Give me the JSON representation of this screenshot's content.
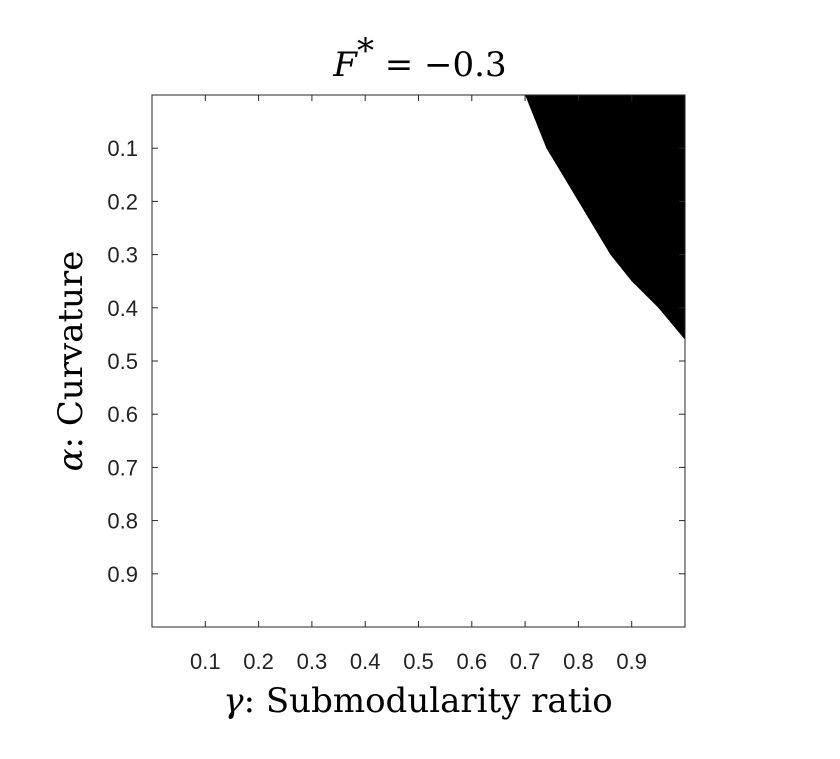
{
  "chart_data": {
    "type": "heatmap",
    "title": {
      "symbol": "F",
      "sup": "*",
      "rest": " = −0.3"
    },
    "xlabel": {
      "symbol": "γ",
      "rest": ": Submodularity ratio"
    },
    "ylabel": {
      "symbol": "α",
      "rest": ": Curvature"
    },
    "xlim": [
      0,
      1
    ],
    "ylim": [
      0,
      1
    ],
    "y_reversed": true,
    "xticks": [
      0.1,
      0.2,
      0.3,
      0.4,
      0.5,
      0.6,
      0.7,
      0.8,
      0.9
    ],
    "yticks": [
      0.1,
      0.2,
      0.3,
      0.4,
      0.5,
      0.6,
      0.7,
      0.8,
      0.9
    ],
    "xtick_labels": [
      "0.1",
      "0.2",
      "0.3",
      "0.4",
      "0.5",
      "0.6",
      "0.7",
      "0.8",
      "0.9"
    ],
    "ytick_labels": [
      "0.1",
      "0.2",
      "0.3",
      "0.4",
      "0.5",
      "0.6",
      "0.7",
      "0.8",
      "0.9"
    ],
    "colors": {
      "region": "#000000",
      "background": "#ffffff"
    },
    "region_boundary": [
      {
        "gamma": 0.7,
        "alpha": 0.0
      },
      {
        "gamma": 0.72,
        "alpha": 0.05
      },
      {
        "gamma": 0.74,
        "alpha": 0.1
      },
      {
        "gamma": 0.77,
        "alpha": 0.15
      },
      {
        "gamma": 0.8,
        "alpha": 0.2
      },
      {
        "gamma": 0.83,
        "alpha": 0.25
      },
      {
        "gamma": 0.86,
        "alpha": 0.3
      },
      {
        "gamma": 0.9,
        "alpha": 0.35
      },
      {
        "gamma": 0.95,
        "alpha": 0.4
      },
      {
        "gamma": 1.0,
        "alpha": 0.46
      }
    ]
  }
}
